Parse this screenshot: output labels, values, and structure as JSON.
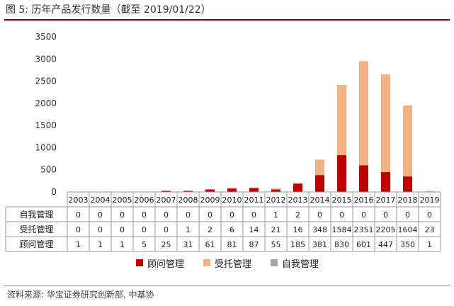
{
  "title": "图 5:  历年产品发行数量（截至 2019/01/22）",
  "source": "资料来源:  华宝证券研究创新部,  中基协",
  "colors": {
    "consultant": "#C00000",
    "entrusted": "#F4B183",
    "self": "#A6A6A6",
    "axis": "#999999",
    "rule": "#8B0000"
  },
  "chart_data": {
    "type": "bar",
    "stacked": true,
    "categories": [
      "2003",
      "2004",
      "2005",
      "2006",
      "2007",
      "2008",
      "2009",
      "2010",
      "2011",
      "2012",
      "2013",
      "2014",
      "2015",
      "2016",
      "2017",
      "2018",
      "2019"
    ],
    "series": [
      {
        "name": "顾问管理",
        "values": [
          1,
          1,
          1,
          5,
          25,
          31,
          61,
          81,
          87,
          55,
          185,
          381,
          830,
          601,
          447,
          350,
          1
        ]
      },
      {
        "name": "受托管理",
        "values": [
          0,
          0,
          0,
          0,
          0,
          1,
          2,
          6,
          14,
          21,
          16,
          348,
          1584,
          2351,
          2205,
          1604,
          23
        ]
      },
      {
        "name": "自我管理",
        "values": [
          0,
          0,
          0,
          0,
          0,
          0,
          0,
          0,
          0,
          1,
          2,
          0,
          0,
          0,
          0,
          0,
          0
        ]
      }
    ],
    "ylim": [
      0,
      3500
    ],
    "yticks": [
      0,
      500,
      1000,
      1500,
      2000,
      2500,
      3000,
      3500
    ],
    "table_rows": [
      "自我管理",
      "受托管理",
      "顾问管理"
    ],
    "legend_position": "bottom"
  }
}
